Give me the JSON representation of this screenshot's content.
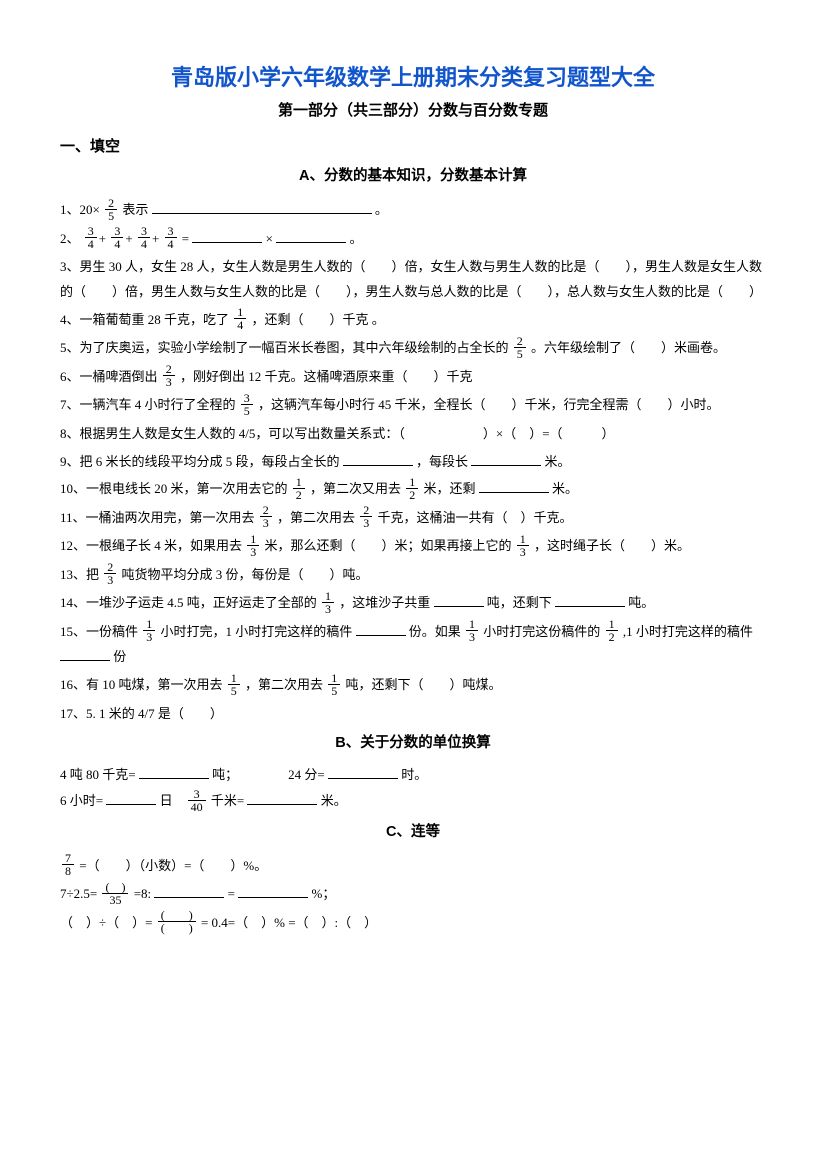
{
  "title_main": "青岛版小学六年级数学上册期末分类复习题型大全",
  "title_sub": "第一部分（共三部分）分数与百分数专题",
  "section1": "一、填空",
  "headingA": "A、分数的基本知识，分数基本计算",
  "q1_pre": "1、20×",
  "q1_post": "表示",
  "q1_end": "。",
  "frac_2_5_n": "2",
  "frac_2_5_d": "5",
  "q2_pre": "2、",
  "frac_3_4_n": "3",
  "frac_3_4_d": "4",
  "q2_eq": "=",
  "q2_mul": "×",
  "q2_end": "。",
  "q3": "3、男生 30 人，女生 28 人，女生人数是男生人数的（　　）倍，女生人数与男生人数的比是（　　），男生人数是女生人数的（　　）倍，男生人数与女生人数的比是（　　），男生人数与总人数的比是（　　），总人数与女生人数的比是（　　）",
  "q4_a": "4、一箱葡萄重 28 千克，吃了",
  "frac_1_4_n": "1",
  "frac_1_4_d": "4",
  "q4_b": "，还剩（　　）千克 。",
  "q5_a": "5、为了庆奥运，实验小学绘制了一幅百米长卷图，其中六年级绘制的占全长的",
  "q5_b": "。六年级绘制了（　　）米画卷。",
  "q6_a": "6、一桶啤酒倒出",
  "frac_2_3_n": "2",
  "frac_2_3_d": "3",
  "q6_b": "，刚好倒出 12 千克。这桶啤酒原来重（　　）千克",
  "q7_a": "7、一辆汽车 4 小时行了全程的",
  "frac_3_5_n": "3",
  "frac_3_5_d": "5",
  "q7_b": "，这辆汽车每小时行 45 千米，全程长（　　）千米，行完全程需（　　）小时。",
  "q8": "8、根据男生人数是女生人数的 4/5，可以写出数量关系式：（　　　　　　）×（　）=（　　　）",
  "q9_a": "9、把 6 米长的线段平均分成 5 段，每段占全长的",
  "q9_b": "，每段长",
  "q9_c": "米。",
  "q10_a": "10、一根电线长 20 米，第一次用去它的",
  "frac_1_2_n": "1",
  "frac_1_2_d": "2",
  "q10_b": "，第二次又用去",
  "q10_c": "米，还剩",
  "q10_d": "米。",
  "q11_a": "11、一桶油两次用完，第一次用去",
  "q11_b": "，第二次用去",
  "q11_c": "千克，这桶油一共有（　）千克。",
  "q12_a": "12、一根绳子长 4 米，如果用去",
  "frac_1_3_n": "1",
  "frac_1_3_d": "3",
  "q12_b": "米，那么还剩（　　）米；如果再接上它的",
  "q12_c": "，这时绳子长（　　）米。",
  "q13_a": "13、把",
  "q13_b": "吨货物平均分成 3 份，每份是（　　）吨。",
  "q14_a": "14、一堆沙子运走 4.5 吨，正好运走了全部的",
  "q14_b": "，这堆沙子共重",
  "q14_c": "吨，还剩下",
  "q14_d": "吨。",
  "q15_a": "15、一份稿件",
  "q15_b": "小时打完，1 小时打完这样的稿件",
  "q15_c": "份。如果",
  "q15_d": "小时打完这份稿件的",
  "q15_e": ",1 小时打完这样的稿件",
  "q15_f": "份",
  "q16_a": "16、有 10 吨煤，第一次用去",
  "frac_1_5_n": "1",
  "frac_1_5_d": "5",
  "q16_b": "，第二次用去",
  "q16_c": "吨，还剩下（　　）吨煤。",
  "q17": "17、5. 1 米的 4/7 是（　　）",
  "headingB": "B、关于分数的单位换算",
  "b1_a": "4 吨 80 千克=",
  "b1_b": "吨；",
  "b1_c": "24 分=",
  "b1_d": "时。",
  "b2_a": "6 小时=",
  "b2_b": "日",
  "frac_3_40_n": "3",
  "frac_3_40_d": "40",
  "b2_c": "千米=",
  "b2_d": "米。",
  "headingC": "C、连等",
  "frac_7_8_n": "7",
  "frac_7_8_d": "8",
  "c1": "=（　　）（小数）=（　　）%。",
  "c2_a": "7÷2.5=",
  "frac_paren_35_n": "(　)",
  "frac_paren_35_d": "35",
  "c2_b": "=8:",
  "c2_c": "=",
  "c2_d": "%；",
  "c3_a": "（　）÷（　）=",
  "frac_paren_paren_n": "(　　)",
  "frac_paren_paren_d": "(　　)",
  "c3_b": "= 0.4=（　）% =（　）:（　）"
}
